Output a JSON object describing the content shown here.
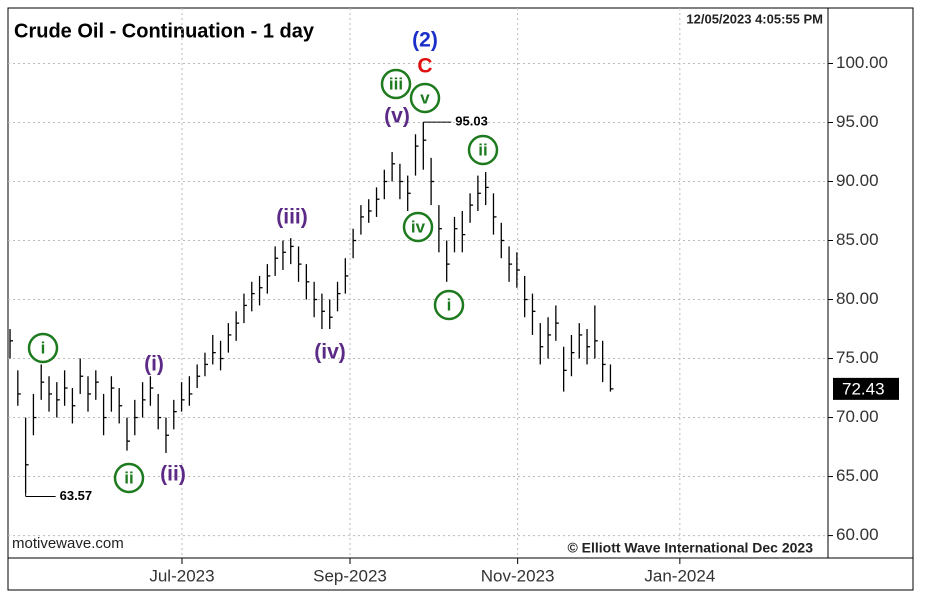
{
  "chart_data": {
    "type": "ohlc",
    "title": "Crude Oil - Continuation - 1 day",
    "timestamp": "12/05/2023 4:05:55 PM",
    "source": "motivewave.com",
    "copyright": "© Elliott Wave International Dec 2023",
    "color": "#000000",
    "grid": true,
    "xlim": [
      -0.26,
      104.9
    ],
    "xticks": [
      {
        "value": 22.05,
        "label": "Jul-2023"
      },
      {
        "value": 43.6,
        "label": "Sep-2023"
      },
      {
        "value": 65.1,
        "label": "Nov-2023"
      },
      {
        "value": 85.9,
        "label": "Jan-2024"
      }
    ],
    "ylim": [
      58.1,
      104.7
    ],
    "yticks": [
      {
        "value": 60,
        "label": "60.00"
      },
      {
        "value": 65,
        "label": "65.00"
      },
      {
        "value": 70,
        "label": "70.00"
      },
      {
        "value": 75,
        "label": "75.00"
      },
      {
        "value": 80,
        "label": "80.00"
      },
      {
        "value": 85,
        "label": "85.00"
      },
      {
        "value": 90,
        "label": "90.00"
      },
      {
        "value": 95,
        "label": "95.00"
      },
      {
        "value": 100,
        "label": "100.00"
      }
    ],
    "high": [
      77.5,
      74,
      70,
      72,
      74.5,
      73.5,
      73,
      74,
      72.5,
      75,
      73.5,
      74,
      72,
      73.5,
      72.5,
      70,
      71.5,
      73,
      73.5,
      72,
      70,
      71.5,
      73,
      73.5,
      74.5,
      75.5,
      77,
      76.5,
      78,
      79,
      80.5,
      81.5,
      82,
      83,
      84.5,
      85,
      85.2,
      84.5,
      83,
      81.5,
      80.5,
      80,
      81.5,
      83.5,
      86,
      88,
      88.5,
      89.5,
      91,
      92.5,
      91.5,
      90.5,
      94,
      95.03,
      92,
      88,
      85,
      87,
      87.5,
      89,
      90.5,
      90.8,
      89,
      86.5,
      84.5,
      84,
      82,
      80.5,
      78,
      78.5,
      79.5,
      76,
      77,
      78,
      77.5,
      79.5,
      76.5,
      74.5
    ],
    "low": [
      75,
      71,
      63.57,
      68.5,
      71.5,
      70.5,
      70,
      71,
      69.5,
      72,
      70.5,
      71.5,
      68.5,
      70.5,
      69.5,
      67.2,
      68.5,
      70,
      71,
      69,
      67,
      69,
      70.5,
      71,
      72.5,
      73.5,
      74.5,
      74,
      75.5,
      76.5,
      78,
      79,
      79.5,
      80.5,
      82,
      82.5,
      83,
      81.5,
      80,
      78.5,
      77.5,
      77.5,
      79,
      80.5,
      83.5,
      85.5,
      86.5,
      87,
      88.5,
      90,
      88.5,
      87.5,
      90.5,
      91,
      88,
      84,
      81.5,
      84,
      84,
      86.5,
      87.5,
      88,
      85.5,
      83.5,
      81.5,
      81,
      78.5,
      77,
      74.5,
      75,
      76.5,
      72.2,
      73.5,
      75,
      74.5,
      75,
      73,
      72.2
    ],
    "close": [
      76.5,
      72,
      66,
      70,
      73,
      72,
      71.5,
      72.5,
      71,
      73.5,
      72,
      73,
      70,
      72.5,
      71,
      68,
      70,
      71.5,
      72.5,
      70,
      68.5,
      70.5,
      71.5,
      72,
      73.5,
      74.5,
      75.5,
      75,
      77,
      78,
      79.5,
      80.5,
      81,
      82,
      83.5,
      84,
      84.5,
      83,
      81.5,
      80,
      79,
      78.5,
      80.5,
      82,
      85,
      87,
      87.5,
      88.5,
      90,
      91.5,
      90,
      89,
      93,
      93.5,
      90,
      86,
      83,
      86,
      85.5,
      88,
      89,
      89.5,
      87,
      85,
      83,
      82.5,
      80,
      79,
      76,
      77,
      78,
      74,
      75.5,
      77,
      76,
      76.5,
      74.5,
      72.43
    ],
    "annotations": [
      {
        "text": "i",
        "color": "#1e7a1e",
        "circled": true
      },
      {
        "text": "ii",
        "color": "#1e7a1e",
        "circled": true
      },
      {
        "text": "(i)",
        "color": "#5b2a86",
        "circled": false
      },
      {
        "text": "(ii)",
        "color": "#5b2a86",
        "circled": false
      },
      {
        "text": "(iii)",
        "color": "#5b2a86",
        "circled": false
      },
      {
        "text": "(iv)",
        "color": "#5b2a86",
        "circled": false
      },
      {
        "text": "(v)",
        "color": "#5b2a86",
        "circled": false
      },
      {
        "text": "iii",
        "color": "#1e7a1e",
        "circled": true
      },
      {
        "text": "v",
        "color": "#1e7a1e",
        "circled": true
      },
      {
        "text": "iv",
        "color": "#1e7a1e",
        "circled": true
      },
      {
        "text": "i",
        "color": "#1e7a1e",
        "circled": true
      },
      {
        "text": "ii",
        "color": "#1e7a1e",
        "circled": true
      },
      {
        "text": "(2)",
        "color": "#1a2fc8",
        "circled": false
      },
      {
        "text": "C",
        "color": "#e01010",
        "circled": false
      }
    ]
  }
}
